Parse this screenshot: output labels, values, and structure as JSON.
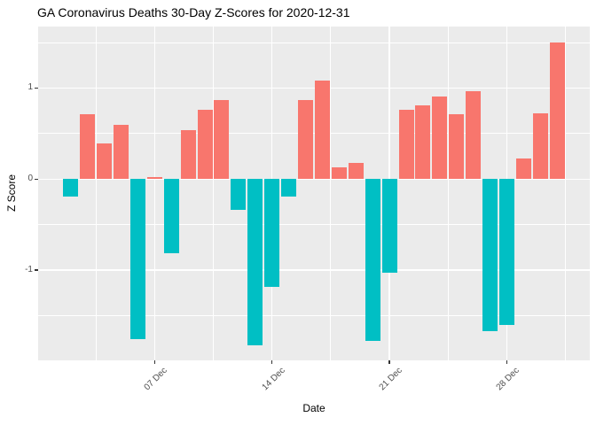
{
  "title": "GA Coronavirus Deaths 30-Day Z-Scores for 2020-12-31",
  "chart_data": {
    "type": "bar",
    "title": "GA Coronavirus Deaths 30-Day Z-Scores for 2020-12-31",
    "xlabel": "Date",
    "ylabel": "Z Score",
    "dates": [
      "Dec 02",
      "Dec 03",
      "Dec 04",
      "Dec 05",
      "Dec 06",
      "Dec 07",
      "Dec 08",
      "Dec 09",
      "Dec 10",
      "Dec 11",
      "Dec 12",
      "Dec 13",
      "Dec 14",
      "Dec 15",
      "Dec 16",
      "Dec 17",
      "Dec 18",
      "Dec 19",
      "Dec 20",
      "Dec 21",
      "Dec 22",
      "Dec 23",
      "Dec 24",
      "Dec 25",
      "Dec 26",
      "Dec 27",
      "Dec 28",
      "Dec 29",
      "Dec 30",
      "Dec 31"
    ],
    "values": [
      -0.19,
      0.71,
      0.39,
      0.6,
      -1.76,
      0.02,
      -0.81,
      0.54,
      0.76,
      0.87,
      -0.34,
      -1.82,
      -1.18,
      -0.19,
      0.87,
      1.08,
      0.13,
      0.18,
      -1.78,
      -1.03,
      0.76,
      0.81,
      0.91,
      0.71,
      0.97,
      -1.67,
      -1.6,
      0.23,
      0.72,
      1.5
    ],
    "x_tick_labels": [
      "07 Dec",
      "14 Dec",
      "21 Dec",
      "28 Dec"
    ],
    "x_tick_positions": [
      5,
      12,
      19,
      26
    ],
    "x_minor_positions": [
      1.5,
      8.5,
      15.5,
      22.5,
      29.5
    ],
    "y_tick_labels": [
      "1",
      "0",
      "-1"
    ],
    "y_tick_values": [
      1,
      0,
      -1
    ],
    "y_minor_values": [
      1.5,
      0.5,
      -0.5,
      -1.5
    ],
    "xlim": [
      -1.945,
      30.945
    ],
    "ylim": [
      -1.99,
      1.675
    ],
    "bar_width_days": 0.9,
    "grid": "on",
    "legend_position": "none",
    "colors": {
      "positive_bar": "#F8766D",
      "negative_bar": "#00BFC4",
      "panel_background": "#EBEBEB",
      "gridline": "#FFFFFF",
      "tick_label": "#4D4D4D",
      "tick_mark": "#333333",
      "axis_title": "#000000",
      "figure_background": "#FFFFFF"
    }
  }
}
